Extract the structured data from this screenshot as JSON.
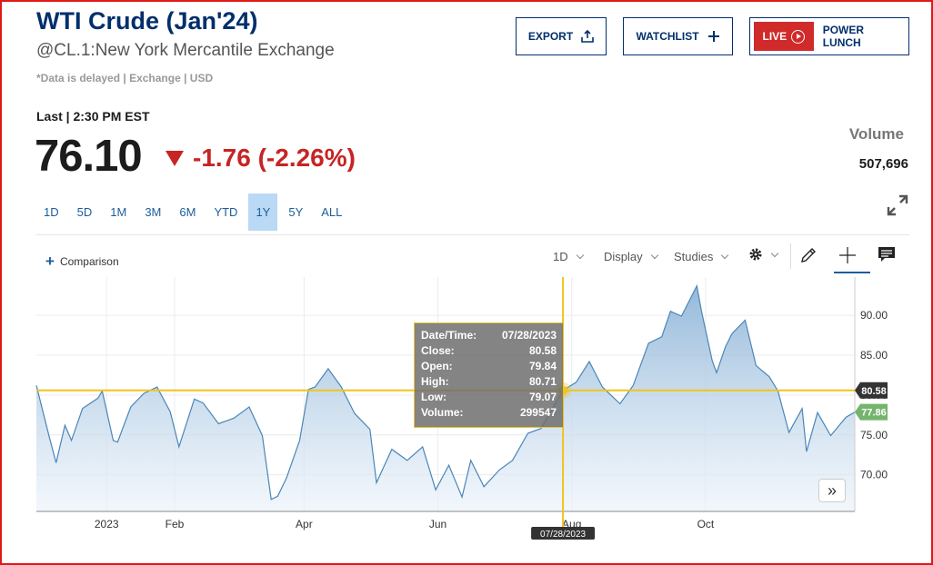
{
  "header": {
    "title": "WTI Crude (Jan'24)",
    "subtitle": "@CL.1:New York Mercantile Exchange",
    "note": "*Data is delayed | Exchange | USD"
  },
  "buttons": {
    "export_label": "EXPORT",
    "watchlist_label": "WATCHLIST",
    "live_label": "LIVE",
    "power_lunch_label": "POWER LUNCH"
  },
  "quote": {
    "last_label": "Last | 2:30 PM EST",
    "price": "76.10",
    "change": "-1.76 (-2.26%)",
    "volume_label": "Volume",
    "volume_value": "507,696"
  },
  "ranges": [
    "1D",
    "5D",
    "1M",
    "3M",
    "6M",
    "YTD",
    "1Y",
    "5Y",
    "ALL"
  ],
  "active_range": "1Y",
  "toolbar": {
    "comparison_label": "Comparison",
    "interval_label": "1D",
    "display_label": "Display",
    "studies_label": "Studies"
  },
  "tooltip": {
    "datetime_label": "Date/Time:",
    "datetime_value": "07/28/2023",
    "close_label": "Close:",
    "close_value": "80.58",
    "open_label": "Open:",
    "open_value": "79.84",
    "high_label": "High:",
    "high_value": "80.71",
    "low_label": "Low:",
    "low_value": "79.07",
    "volume_label": "Volume:",
    "volume_value": "299547"
  },
  "chart_data": {
    "type": "area",
    "y_ticks": [
      "90.00",
      "85.00",
      "80.00",
      "75.00",
      "70.00"
    ],
    "ylim": [
      65.4,
      94.8
    ],
    "x_labels": [
      {
        "label": "2023",
        "date": "2023-01-01"
      },
      {
        "label": "Feb",
        "date": "2023-02-01"
      },
      {
        "label": "Apr",
        "date": "2023-04-01"
      },
      {
        "label": "Jun",
        "date": "2023-06-01"
      },
      {
        "label": "Aug",
        "date": "2023-08-01"
      },
      {
        "label": "Oct",
        "date": "2023-10-01"
      }
    ],
    "x_range": [
      "2022-11-30",
      "2023-12-08"
    ],
    "crosshair": {
      "date": "2023-07-28",
      "date_label": "07/28/2023",
      "value": 80.58,
      "value_label": "80.58"
    },
    "last_value": {
      "value": 77.86,
      "label": "77.86"
    },
    "series": [
      {
        "points": [
          [
            "2022-11-30",
            81.2
          ],
          [
            "2022-12-06",
            74.6
          ],
          [
            "2022-12-09",
            71.5
          ],
          [
            "2022-12-13",
            76.2
          ],
          [
            "2022-12-16",
            74.3
          ],
          [
            "2022-12-21",
            78.3
          ],
          [
            "2022-12-28",
            79.6
          ],
          [
            "2022-12-30",
            80.5
          ],
          [
            "2023-01-04",
            74.3
          ],
          [
            "2023-01-06",
            74.1
          ],
          [
            "2023-01-12",
            78.5
          ],
          [
            "2023-01-18",
            80.2
          ],
          [
            "2023-01-24",
            81.0
          ],
          [
            "2023-01-30",
            77.9
          ],
          [
            "2023-02-03",
            73.5
          ],
          [
            "2023-02-10",
            79.5
          ],
          [
            "2023-02-14",
            79.0
          ],
          [
            "2023-02-21",
            76.4
          ],
          [
            "2023-02-28",
            77.1
          ],
          [
            "2023-03-07",
            78.5
          ],
          [
            "2023-03-13",
            74.9
          ],
          [
            "2023-03-17",
            66.9
          ],
          [
            "2023-03-20",
            67.3
          ],
          [
            "2023-03-24",
            69.6
          ],
          [
            "2023-03-30",
            74.3
          ],
          [
            "2023-04-03",
            80.7
          ],
          [
            "2023-04-06",
            81.0
          ],
          [
            "2023-04-12",
            83.3
          ],
          [
            "2023-04-18",
            81.0
          ],
          [
            "2023-04-24",
            77.7
          ],
          [
            "2023-05-01",
            75.7
          ],
          [
            "2023-05-04",
            69.0
          ],
          [
            "2023-05-11",
            73.2
          ],
          [
            "2023-05-18",
            71.8
          ],
          [
            "2023-05-25",
            73.5
          ],
          [
            "2023-05-31",
            68.1
          ],
          [
            "2023-06-06",
            71.2
          ],
          [
            "2023-06-12",
            67.2
          ],
          [
            "2023-06-16",
            71.8
          ],
          [
            "2023-06-22",
            68.5
          ],
          [
            "2023-06-29",
            70.6
          ],
          [
            "2023-07-05",
            71.8
          ],
          [
            "2023-07-12",
            75.2
          ],
          [
            "2023-07-18",
            75.8
          ],
          [
            "2023-07-24",
            78.7
          ],
          [
            "2023-07-28",
            80.58
          ],
          [
            "2023-08-03",
            81.6
          ],
          [
            "2023-08-09",
            84.2
          ],
          [
            "2023-08-15",
            81.0
          ],
          [
            "2023-08-23",
            78.9
          ],
          [
            "2023-08-29",
            81.2
          ],
          [
            "2023-09-05",
            86.5
          ],
          [
            "2023-09-11",
            87.3
          ],
          [
            "2023-09-15",
            90.5
          ],
          [
            "2023-09-20",
            89.9
          ],
          [
            "2023-09-27",
            93.7
          ],
          [
            "2023-09-29",
            90.7
          ],
          [
            "2023-10-04",
            84.3
          ],
          [
            "2023-10-06",
            82.8
          ],
          [
            "2023-10-10",
            86.0
          ],
          [
            "2023-10-13",
            87.7
          ],
          [
            "2023-10-19",
            89.4
          ],
          [
            "2023-10-24",
            83.7
          ],
          [
            "2023-10-30",
            82.3
          ],
          [
            "2023-11-03",
            80.5
          ],
          [
            "2023-11-08",
            75.3
          ],
          [
            "2023-11-14",
            78.3
          ],
          [
            "2023-11-16",
            72.9
          ],
          [
            "2023-11-21",
            77.8
          ],
          [
            "2023-11-27",
            74.9
          ],
          [
            "2023-11-30",
            75.9
          ],
          [
            "2023-12-04",
            77.2
          ],
          [
            "2023-12-08",
            77.86
          ]
        ]
      }
    ]
  },
  "colors": {
    "brand": "#002f6c",
    "negative": "#c72424",
    "line": "#4a86b8",
    "crosshair": "#f0c419",
    "last_value": "#74b46c"
  },
  "icons": {
    "export": "share-icon",
    "watchlist": "plus-icon",
    "live": "play-icon",
    "expand": "expand-icon",
    "settings": "gear-icon",
    "draw": "pencil-icon",
    "crosshair": "crosshair-icon",
    "comments": "comment-icon",
    "nav": "chevron-double-right-icon"
  }
}
